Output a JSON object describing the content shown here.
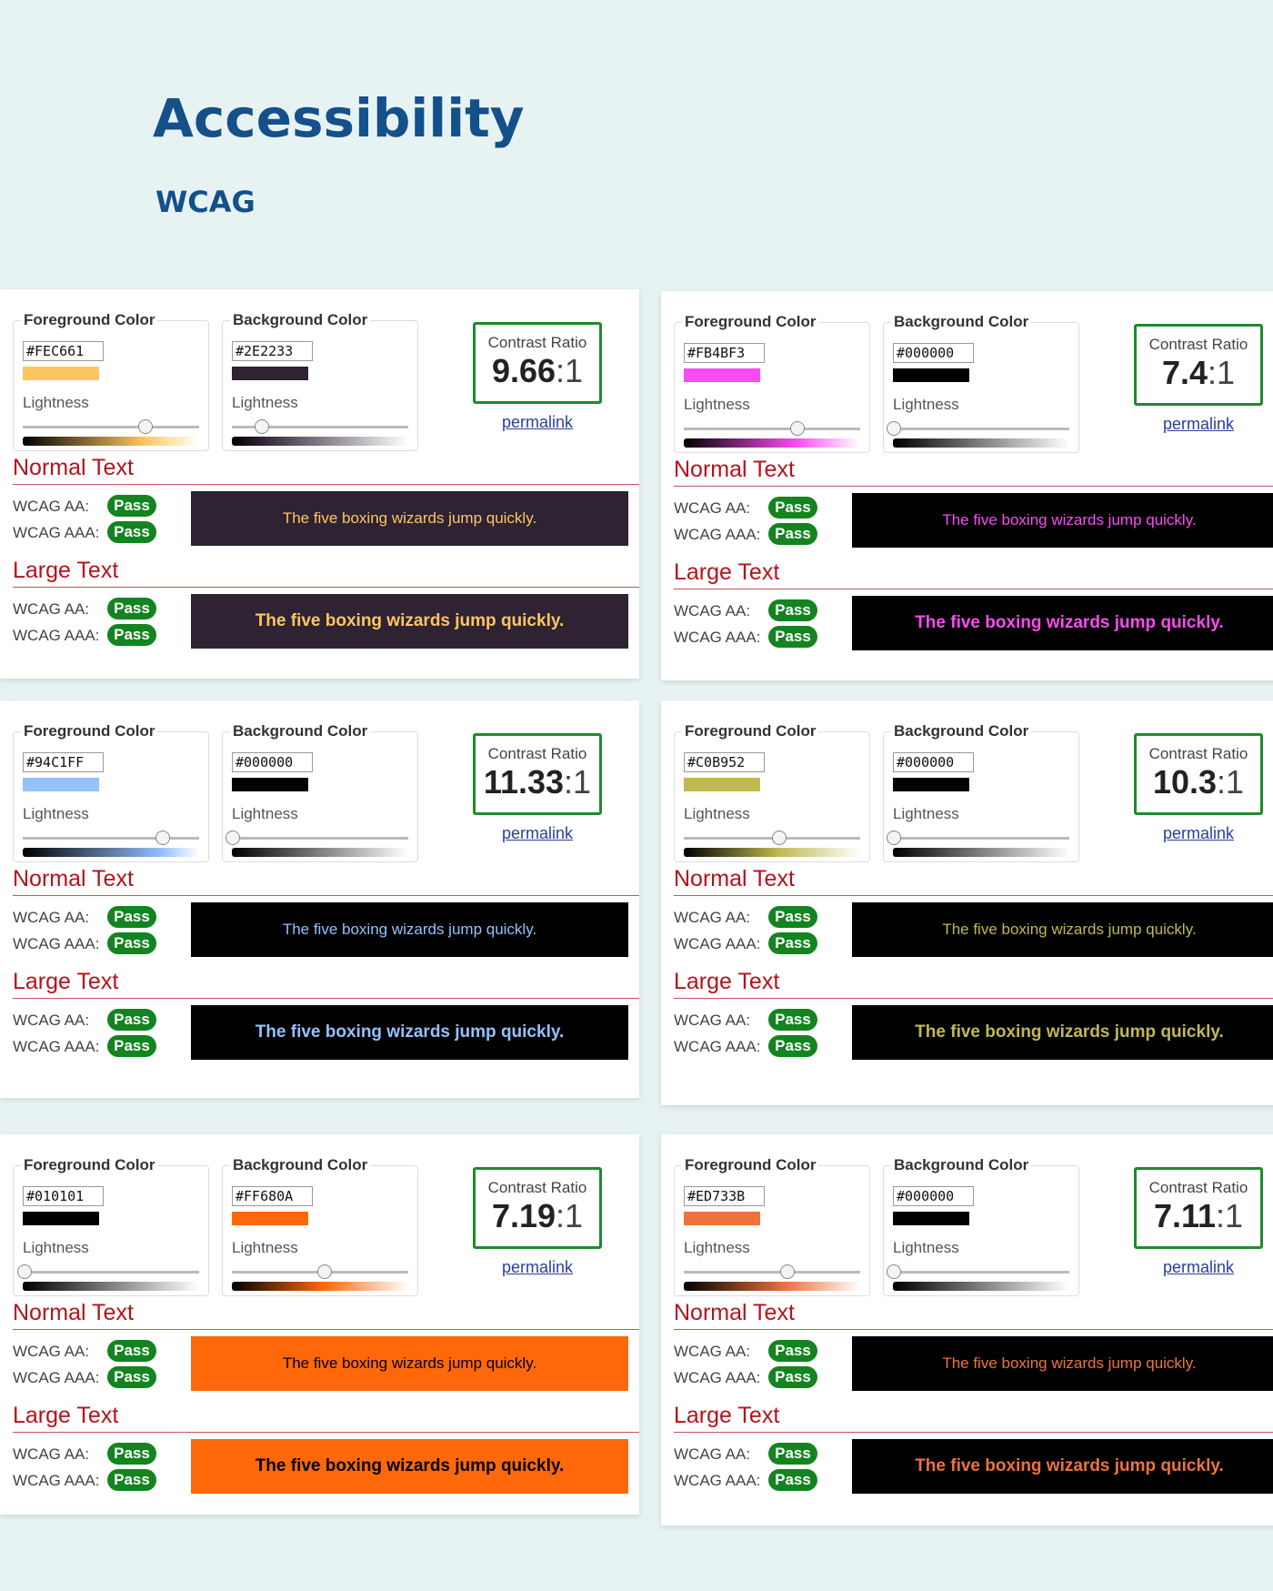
{
  "header": {
    "title": "Accessibility",
    "subtitle": "WCAG"
  },
  "panels": [
    {
      "foreground": {
        "label": "Foreground Color",
        "hex": "#FEC661",
        "lightness_label": "Lightness"
      },
      "background": {
        "label": "Background Color",
        "hex": "#2E2233",
        "lightness_label": "Lightness"
      },
      "contrast": {
        "label": "Contrast Ratio",
        "ratio": "9.66",
        "suffix": ":1",
        "link": "permalink"
      },
      "normal": {
        "title": "Normal Text",
        "checks": [
          {
            "label": "WCAG AA:",
            "result": "Pass"
          },
          {
            "label": "WCAG AAA:",
            "result": "Pass"
          }
        ],
        "sample": "The five boxing wizards jump quickly."
      },
      "large": {
        "title": "Large Text",
        "checks": [
          {
            "label": "WCAG AA:",
            "result": "Pass"
          },
          {
            "label": "WCAG AAA:",
            "result": "Pass"
          }
        ],
        "sample": "The five boxing wizards jump quickly."
      }
    },
    {
      "foreground": {
        "label": "Foreground Color",
        "hex": "#FB4BF3",
        "lightness_label": "Lightness"
      },
      "background": {
        "label": "Background Color",
        "hex": "#000000",
        "lightness_label": "Lightness"
      },
      "contrast": {
        "label": "Contrast Ratio",
        "ratio": "7.4",
        "suffix": ":1",
        "link": "permalink"
      },
      "normal": {
        "title": "Normal Text",
        "checks": [
          {
            "label": "WCAG AA:",
            "result": "Pass"
          },
          {
            "label": "WCAG AAA:",
            "result": "Pass"
          }
        ],
        "sample": "The five boxing wizards jump quickly."
      },
      "large": {
        "title": "Large Text",
        "checks": [
          {
            "label": "WCAG AA:",
            "result": "Pass"
          },
          {
            "label": "WCAG AAA:",
            "result": "Pass"
          }
        ],
        "sample": "The five boxing wizards jump quickly."
      }
    },
    {
      "foreground": {
        "label": "Foreground Color",
        "hex": "#94C1FF",
        "lightness_label": "Lightness"
      },
      "background": {
        "label": "Background Color",
        "hex": "#000000",
        "lightness_label": "Lightness"
      },
      "contrast": {
        "label": "Contrast Ratio",
        "ratio": "11.33",
        "suffix": ":1",
        "link": "permalink"
      },
      "normal": {
        "title": "Normal Text",
        "checks": [
          {
            "label": "WCAG AA:",
            "result": "Pass"
          },
          {
            "label": "WCAG AAA:",
            "result": "Pass"
          }
        ],
        "sample": "The five boxing wizards jump quickly."
      },
      "large": {
        "title": "Large Text",
        "checks": [
          {
            "label": "WCAG AA:",
            "result": "Pass"
          },
          {
            "label": "WCAG AAA:",
            "result": "Pass"
          }
        ],
        "sample": "The five boxing wizards jump quickly."
      }
    },
    {
      "foreground": {
        "label": "Foreground Color",
        "hex": "#C0B952",
        "lightness_label": "Lightness"
      },
      "background": {
        "label": "Background Color",
        "hex": "#000000",
        "lightness_label": "Lightness"
      },
      "contrast": {
        "label": "Contrast Ratio",
        "ratio": "10.3",
        "suffix": ":1",
        "link": "permalink"
      },
      "normal": {
        "title": "Normal Text",
        "checks": [
          {
            "label": "WCAG AA:",
            "result": "Pass"
          },
          {
            "label": "WCAG AAA:",
            "result": "Pass"
          }
        ],
        "sample": "The five boxing wizards jump quickly."
      },
      "large": {
        "title": "Large Text",
        "checks": [
          {
            "label": "WCAG AA:",
            "result": "Pass"
          },
          {
            "label": "WCAG AAA:",
            "result": "Pass"
          }
        ],
        "sample": "The five boxing wizards jump quickly."
      }
    },
    {
      "foreground": {
        "label": "Foreground Color",
        "hex": "#010101",
        "lightness_label": "Lightness"
      },
      "background": {
        "label": "Background Color",
        "hex": "#FF680A",
        "lightness_label": "Lightness"
      },
      "contrast": {
        "label": "Contrast Ratio",
        "ratio": "7.19",
        "suffix": ":1",
        "link": "permalink"
      },
      "normal": {
        "title": "Normal Text",
        "checks": [
          {
            "label": "WCAG AA:",
            "result": "Pass"
          },
          {
            "label": "WCAG AAA:",
            "result": "Pass"
          }
        ],
        "sample": "The five boxing wizards jump quickly."
      },
      "large": {
        "title": "Large Text",
        "checks": [
          {
            "label": "WCAG AA:",
            "result": "Pass"
          },
          {
            "label": "WCAG AAA:",
            "result": "Pass"
          }
        ],
        "sample": "The five boxing wizards jump quickly."
      }
    },
    {
      "foreground": {
        "label": "Foreground Color",
        "hex": "#ED733B",
        "lightness_label": "Lightness"
      },
      "background": {
        "label": "Background Color",
        "hex": "#000000",
        "lightness_label": "Lightness"
      },
      "contrast": {
        "label": "Contrast Ratio",
        "ratio": "7.11",
        "suffix": ":1",
        "link": "permalink"
      },
      "normal": {
        "title": "Normal Text",
        "checks": [
          {
            "label": "WCAG AA:",
            "result": "Pass"
          },
          {
            "label": "WCAG AAA:",
            "result": "Pass"
          }
        ],
        "sample": "The five boxing wizards jump quickly."
      },
      "large": {
        "title": "Large Text",
        "checks": [
          {
            "label": "WCAG AA:",
            "result": "Pass"
          },
          {
            "label": "WCAG AAA:",
            "result": "Pass"
          }
        ],
        "sample": "The five boxing wizards jump quickly."
      }
    }
  ]
}
